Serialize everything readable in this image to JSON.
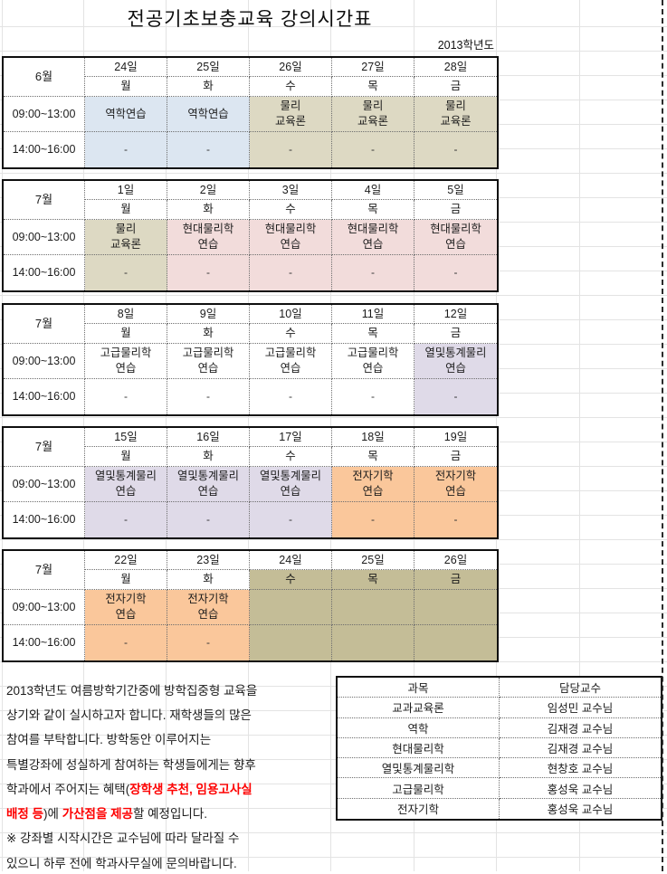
{
  "title": "전공기초보충교육 강의시간표",
  "year_label": "2013학년도",
  "time_rows": [
    "09:00~13:00",
    "14:00~16:00"
  ],
  "cell_colors": {
    "blue": "#dce6f1",
    "khaki": "#ddd9c3",
    "pink": "#f2dcdb",
    "lavender": "#dfdae8",
    "orange": "#fac79b",
    "olive": "#c4bd97",
    "none": ""
  },
  "weeks": [
    {
      "month": "6월",
      "days": [
        "24일",
        "25일",
        "26일",
        "27일",
        "28일"
      ],
      "weekdays": [
        "월",
        "화",
        "수",
        "목",
        "금"
      ],
      "weekday_bg": [
        "none",
        "none",
        "none",
        "none",
        "none"
      ],
      "morning": [
        {
          "text": "역학연습",
          "bg": "blue"
        },
        {
          "text": "역학연습",
          "bg": "blue"
        },
        {
          "text": "물리\n교육론",
          "bg": "khaki"
        },
        {
          "text": "물리\n교육론",
          "bg": "khaki"
        },
        {
          "text": "물리\n교육론",
          "bg": "khaki"
        }
      ],
      "afternoon": [
        {
          "text": "-",
          "bg": "blue"
        },
        {
          "text": "-",
          "bg": "blue"
        },
        {
          "text": "-",
          "bg": "khaki"
        },
        {
          "text": "-",
          "bg": "khaki"
        },
        {
          "text": "-",
          "bg": "khaki"
        }
      ]
    },
    {
      "month": "7월",
      "days": [
        "1일",
        "2일",
        "3일",
        "4일",
        "5일"
      ],
      "weekdays": [
        "월",
        "화",
        "수",
        "목",
        "금"
      ],
      "weekday_bg": [
        "none",
        "none",
        "none",
        "none",
        "none"
      ],
      "morning": [
        {
          "text": "물리\n교육론",
          "bg": "khaki"
        },
        {
          "text": "현대물리학\n연습",
          "bg": "pink"
        },
        {
          "text": "현대물리학\n연습",
          "bg": "pink"
        },
        {
          "text": "현대물리학\n연습",
          "bg": "pink"
        },
        {
          "text": "현대물리학\n연습",
          "bg": "pink"
        }
      ],
      "afternoon": [
        {
          "text": "-",
          "bg": "khaki"
        },
        {
          "text": "-",
          "bg": "pink"
        },
        {
          "text": "-",
          "bg": "pink"
        },
        {
          "text": "-",
          "bg": "pink"
        },
        {
          "text": "-",
          "bg": "pink"
        }
      ]
    },
    {
      "month": "7월",
      "days": [
        "8일",
        "9일",
        "10일",
        "11일",
        "12일"
      ],
      "weekdays": [
        "월",
        "화",
        "수",
        "목",
        "금"
      ],
      "weekday_bg": [
        "none",
        "none",
        "none",
        "none",
        "none"
      ],
      "morning": [
        {
          "text": "고급물리학\n연습",
          "bg": "none"
        },
        {
          "text": "고급물리학\n연습",
          "bg": "none"
        },
        {
          "text": "고급물리학\n연습",
          "bg": "none"
        },
        {
          "text": "고급물리학\n연습",
          "bg": "none"
        },
        {
          "text": "열및통계물리\n연습",
          "bg": "lavender"
        }
      ],
      "afternoon": [
        {
          "text": "-",
          "bg": "none"
        },
        {
          "text": "-",
          "bg": "none"
        },
        {
          "text": "-",
          "bg": "none"
        },
        {
          "text": "-",
          "bg": "none"
        },
        {
          "text": "-",
          "bg": "lavender"
        }
      ]
    },
    {
      "month": "7월",
      "days": [
        "15일",
        "16일",
        "17일",
        "18일",
        "19일"
      ],
      "weekdays": [
        "월",
        "화",
        "수",
        "목",
        "금"
      ],
      "weekday_bg": [
        "none",
        "none",
        "none",
        "none",
        "none"
      ],
      "morning": [
        {
          "text": "열및통계물리\n연습",
          "bg": "lavender"
        },
        {
          "text": "열및통계물리\n연습",
          "bg": "lavender"
        },
        {
          "text": "열및통계물리\n연습",
          "bg": "lavender"
        },
        {
          "text": "전자기학\n연습",
          "bg": "orange"
        },
        {
          "text": "전자기학\n연습",
          "bg": "orange"
        }
      ],
      "afternoon": [
        {
          "text": "-",
          "bg": "lavender"
        },
        {
          "text": "-",
          "bg": "lavender"
        },
        {
          "text": "-",
          "bg": "lavender"
        },
        {
          "text": "-",
          "bg": "orange"
        },
        {
          "text": "-",
          "bg": "orange"
        }
      ]
    },
    {
      "month": "7월",
      "days": [
        "22일",
        "23일",
        "24일",
        "25일",
        "26일"
      ],
      "weekdays": [
        "월",
        "화",
        "수",
        "목",
        "금"
      ],
      "weekday_bg": [
        "none",
        "none",
        "olive",
        "olive",
        "olive"
      ],
      "morning": [
        {
          "text": "전자기학\n연습",
          "bg": "orange"
        },
        {
          "text": "전자기학\n연습",
          "bg": "orange"
        },
        {
          "text": "",
          "bg": "olive"
        },
        {
          "text": "",
          "bg": "olive"
        },
        {
          "text": "",
          "bg": "olive"
        }
      ],
      "afternoon": [
        {
          "text": "-",
          "bg": "orange"
        },
        {
          "text": "-",
          "bg": "orange"
        },
        {
          "text": "",
          "bg": "olive"
        },
        {
          "text": "",
          "bg": "olive"
        },
        {
          "text": "",
          "bg": "olive"
        }
      ]
    }
  ],
  "notes": {
    "lines": [
      [
        {
          "t": "2013학년도 여름방학기간중에 방학집중형 교육을"
        }
      ],
      [
        {
          "t": "상기와 같이 실시하고자 합니다. 재학생들의 많은"
        }
      ],
      [
        {
          "t": "참여를 부탁합니다. 방학동안 이루어지는"
        }
      ],
      [
        {
          "t": "특별강좌에 성실하게 참여하는 학생들에게는 향후"
        }
      ],
      [
        {
          "t": "학과에서 주어지는 혜택("
        },
        {
          "t": "장학생 추천, 임용고사실",
          "red": true
        }
      ],
      [
        {
          "t": "배정 등",
          "red": true
        },
        {
          "t": ")에 "
        },
        {
          "t": "가산점을 제공",
          "red": true
        },
        {
          "t": "할 예정입니다."
        }
      ],
      [
        {
          "t": "※ 강좌별 시작시간은 교수님에 따라 달라질 수"
        }
      ],
      [
        {
          "t": "있으니 하루 전에 학과사무실에 문의바랍니다."
        }
      ]
    ]
  },
  "faculty_table": {
    "headers": [
      "과목",
      "담당교수"
    ],
    "rows": [
      [
        "교과교육론",
        "임성민 교수님"
      ],
      [
        "역학",
        "김재경 교수님"
      ],
      [
        "현대물리학",
        "김재경 교수님"
      ],
      [
        "열및통계물리학",
        "현창호 교수님"
      ],
      [
        "고급물리학",
        "홍성욱 교수님"
      ],
      [
        "전자기학",
        "홍성욱 교수님"
      ]
    ]
  }
}
